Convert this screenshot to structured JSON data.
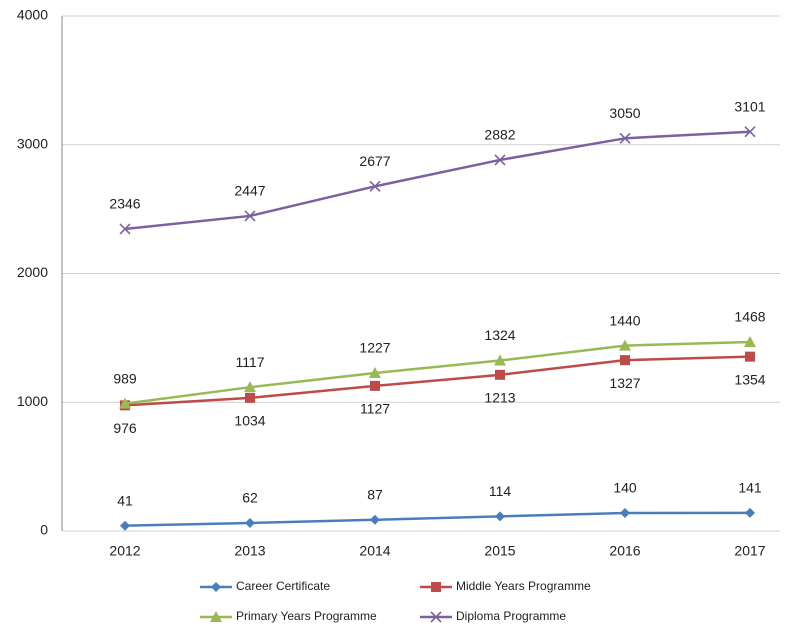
{
  "chart_data": {
    "type": "line",
    "categories": [
      "2012",
      "2013",
      "2014",
      "2015",
      "2016",
      "2017"
    ],
    "series": [
      {
        "name": "Career Certificate",
        "color": "#4a7ebb",
        "marker": "diamond",
        "values": [
          41,
          62,
          87,
          114,
          140,
          141
        ]
      },
      {
        "name": "Middle Years Programme",
        "color": "#be4b48",
        "marker": "square",
        "values": [
          976,
          1034,
          1127,
          1213,
          1327,
          1354
        ]
      },
      {
        "name": "Primary Years Programme",
        "color": "#98b954",
        "marker": "triangle",
        "values": [
          989,
          1117,
          1227,
          1324,
          1440,
          1468
        ]
      },
      {
        "name": "Diploma Programme",
        "color": "#7d60a0",
        "marker": "x",
        "values": [
          2346,
          2447,
          2677,
          2882,
          3050,
          3101
        ]
      }
    ],
    "ylim": [
      0,
      4000
    ],
    "yticks": [
      0,
      1000,
      2000,
      3000,
      4000
    ],
    "grid": true,
    "legend": "bottom"
  }
}
